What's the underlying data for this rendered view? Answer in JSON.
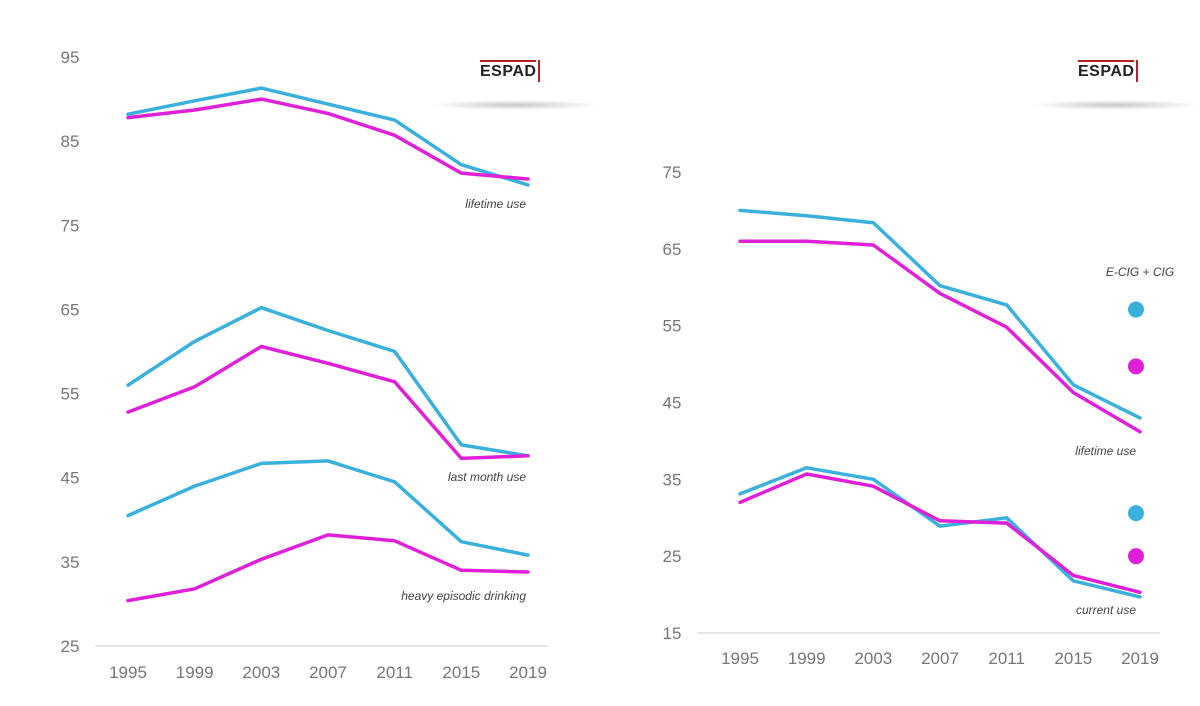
{
  "colors": {
    "series_a": "#3ab0dd",
    "series_b": "#e020d8",
    "tick": "#777777",
    "axis": "#cccccc"
  },
  "chart_data": [
    {
      "type": "line",
      "logo": "ESPAD",
      "title": "",
      "xlabel": "",
      "ylabel": "",
      "x": [
        "1995",
        "1999",
        "2003",
        "2007",
        "2011",
        "2015",
        "2019"
      ],
      "yticks": [
        "95",
        "85",
        "75",
        "65",
        "55",
        "45",
        "35",
        "25"
      ],
      "ylim": [
        25,
        95
      ],
      "grid": false,
      "annotations": [
        "lifetime use",
        "last month use",
        "heavy episodic drinking"
      ],
      "series": [
        {
          "color": "series_a",
          "group": "lifetime use",
          "values": [
            88.2,
            89.8,
            91.3,
            89.4,
            87.5,
            82.2,
            79.8
          ]
        },
        {
          "color": "series_b",
          "group": "lifetime use",
          "values": [
            87.8,
            88.7,
            90.0,
            88.3,
            85.7,
            81.2,
            80.5
          ]
        },
        {
          "color": "series_a",
          "group": "last month use",
          "values": [
            56.0,
            61.2,
            65.2,
            62.5,
            60.0,
            48.9,
            47.6
          ]
        },
        {
          "color": "series_b",
          "group": "last month use",
          "values": [
            52.8,
            55.8,
            60.6,
            58.6,
            56.4,
            47.3,
            47.6
          ]
        },
        {
          "color": "series_a",
          "group": "heavy episodic drinking",
          "values": [
            40.5,
            44.0,
            46.7,
            47.0,
            44.5,
            37.4,
            35.8
          ]
        },
        {
          "color": "series_b",
          "group": "heavy episodic drinking",
          "values": [
            30.4,
            31.8,
            35.3,
            38.2,
            37.5,
            34.0,
            33.8
          ]
        }
      ]
    },
    {
      "type": "line",
      "logo": "ESPAD",
      "title": "",
      "xlabel": "",
      "ylabel": "",
      "x": [
        "1995",
        "1999",
        "2003",
        "2007",
        "2011",
        "2015",
        "2019"
      ],
      "yticks": [
        "75",
        "65",
        "55",
        "45",
        "35",
        "25",
        "15"
      ],
      "ylim": [
        15,
        75
      ],
      "grid": false,
      "annotations": [
        "E-CIG + CIG",
        "lifetime use",
        "current use"
      ],
      "series": [
        {
          "color": "series_a",
          "group": "lifetime use",
          "values": [
            70.0,
            69.3,
            68.4,
            60.2,
            57.7,
            47.3,
            43.0
          ]
        },
        {
          "color": "series_b",
          "group": "lifetime use",
          "values": [
            66.0,
            66.0,
            65.5,
            59.2,
            54.8,
            46.3,
            41.2
          ]
        },
        {
          "color": "series_a",
          "group": "current use",
          "values": [
            33.1,
            36.5,
            35.0,
            28.9,
            30.0,
            21.8,
            19.7
          ]
        },
        {
          "color": "series_b",
          "group": "current use",
          "values": [
            32.0,
            35.7,
            34.1,
            29.6,
            29.3,
            22.5,
            20.3
          ]
        }
      ],
      "dots": [
        {
          "color": "series_a",
          "group": "lifetime use",
          "value": 57.1
        },
        {
          "color": "series_b",
          "group": "lifetime use",
          "value": 49.7
        },
        {
          "color": "series_a",
          "group": "current use",
          "value": 30.6
        },
        {
          "color": "series_b",
          "group": "current use",
          "value": 25.0
        }
      ]
    }
  ]
}
